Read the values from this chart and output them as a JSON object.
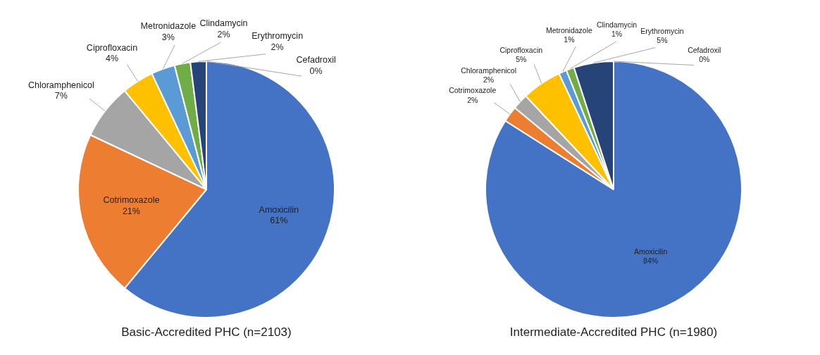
{
  "chart_data": [
    {
      "type": "pie",
      "title": "Basic-Accredited PHC (n=2103)",
      "categories": [
        "Amoxicilin",
        "Cotrimoxazole",
        "Chloramphenicol",
        "Ciprofloxacin",
        "Metronidazole",
        "Clindamycin",
        "Erythromycin",
        "Cefadroxil"
      ],
      "values": [
        61,
        21,
        7,
        4,
        3,
        2,
        2,
        0
      ],
      "value_labels": [
        "61%",
        "21%",
        "7%",
        "4%",
        "3%",
        "2%",
        "2%",
        "0%"
      ],
      "colors": [
        "#4472c4",
        "#ed7d31",
        "#a5a5a5",
        "#ffc000",
        "#5b9bd5",
        "#70ad47",
        "#264478",
        "#9e480e"
      ]
    },
    {
      "type": "pie",
      "title": "Intermediate-Accredited PHC (n=1980)",
      "categories": [
        "Amoxicilin",
        "Cotrimoxazole",
        "Chloramphenicol",
        "Ciprofloxacin",
        "Metronidazole",
        "Clindamycin",
        "Erythromycin",
        "Cefadroxil"
      ],
      "values": [
        84,
        2,
        2,
        5,
        1,
        1,
        5,
        0
      ],
      "value_labels": [
        "84%",
        "2%",
        "2%",
        "5%",
        "1%",
        "1%",
        "5%",
        "0%"
      ],
      "colors": [
        "#4472c4",
        "#ed7d31",
        "#a5a5a5",
        "#ffc000",
        "#5b9bd5",
        "#70ad47",
        "#264478",
        "#9e480e"
      ]
    }
  ]
}
